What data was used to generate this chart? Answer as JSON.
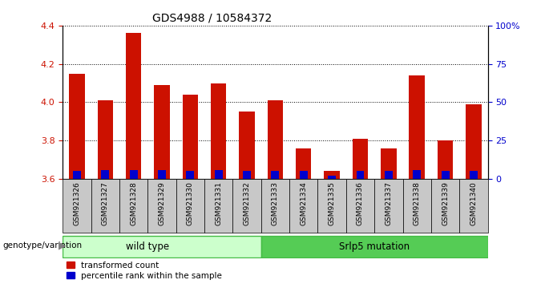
{
  "title": "GDS4988 / 10584372",
  "samples": [
    "GSM921326",
    "GSM921327",
    "GSM921328",
    "GSM921329",
    "GSM921330",
    "GSM921331",
    "GSM921332",
    "GSM921333",
    "GSM921334",
    "GSM921335",
    "GSM921336",
    "GSM921337",
    "GSM921338",
    "GSM921339",
    "GSM921340"
  ],
  "transformed_counts": [
    4.15,
    4.01,
    4.36,
    4.09,
    4.04,
    4.1,
    3.95,
    4.01,
    3.76,
    3.64,
    3.81,
    3.76,
    4.14,
    3.8,
    3.99
  ],
  "percentile_ranks": [
    5,
    6,
    6,
    6,
    5,
    6,
    5,
    5,
    5,
    2,
    5,
    5,
    6,
    5,
    5
  ],
  "bar_base": 3.6,
  "ylim_left": [
    3.6,
    4.4
  ],
  "ylim_right": [
    0,
    100
  ],
  "yticks_left": [
    3.6,
    3.8,
    4.0,
    4.2,
    4.4
  ],
  "yticks_right": [
    0,
    25,
    50,
    75,
    100
  ],
  "ytick_labels_right": [
    "0",
    "25",
    "50",
    "75",
    "100%"
  ],
  "red_color": "#CC1100",
  "blue_color": "#0000CC",
  "wild_type_count": 7,
  "mutation_count": 8,
  "wild_type_label": "wild type",
  "mutation_label": "Srlp5 mutation",
  "group_label": "genotype/variation",
  "legend_red": "transformed count",
  "legend_blue": "percentile rank within the sample",
  "bar_width": 0.55,
  "blue_bar_width": 0.28,
  "bg_color": "#ffffff",
  "tick_label_color_left": "#CC1100",
  "tick_label_color_right": "#0000CC",
  "xtick_bg": "#c8c8c8",
  "wt_color": "#ccffcc",
  "mut_color": "#44cc44",
  "wt_edge": "#44aa44",
  "mut_edge": "#228822",
  "group_box_color": "#44bb44"
}
